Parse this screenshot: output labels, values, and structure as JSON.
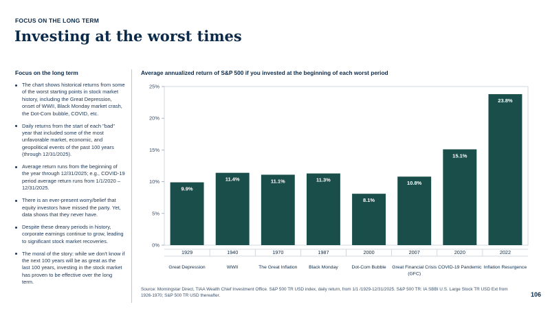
{
  "header": {
    "eyebrow": "FOCUS ON THE LONG TERM",
    "title": "Investing at the worst times"
  },
  "sidebar": {
    "heading": "Focus on the long term",
    "bullets": [
      "The chart shows historical returns from some of the worst starting points in stock market history, including the Great Depression, onset of  WWII, Black Monday market crash, the Dot-Com bubble, COVID, etc.",
      "Daily returns from the start of each \"bad\" year that included some of the most unfavorable market, economic, and geopolitical events of the past 100 years (through 12/31/2025).",
      "Average return runs from the beginning of the year through 12/31/2025; e.g., COVID-19 period average return runs from 1/1/2020 – 12/31/2025.",
      "There is an ever-present worry/belief that equity investors have missed the party. Yet, data shows that they never have.",
      "Despite these dreary periods in history, corporate earnings continue to grow, leading to significant stock market recoveries.",
      "The moral of the story: while we don't know if the next 100 years will be as great as the last 100 years, investing in the stock market has proven to be effective over the long term."
    ]
  },
  "chart_data": {
    "type": "bar",
    "title": "Average annualized return of S&P 500 if you invested at the beginning of each worst period",
    "categories": [
      "1929",
      "1940",
      "1970",
      "1987",
      "2000",
      "2007",
      "2020",
      "2022"
    ],
    "category_labels": [
      "Great Depression",
      "WWII",
      "The Great Inflation",
      "Black Monday",
      "Dot-Com Bubble",
      "Great Financial Crisis (GFC)",
      "COVID-19 Pandemic",
      "Inflation Resurgence"
    ],
    "values": [
      9.9,
      11.4,
      11.1,
      11.3,
      8.1,
      10.8,
      15.1,
      23.8
    ],
    "data_labels": [
      "9.9%",
      "11.4%",
      "11.1%",
      "11.3%",
      "8.1%",
      "10.8%",
      "15.1%",
      "23.8%"
    ],
    "yticks": [
      0,
      5,
      10,
      15,
      20,
      25
    ],
    "ytick_labels": [
      "0%",
      "5%",
      "10%",
      "15%",
      "20%",
      "25%"
    ],
    "ylim": [
      0,
      25
    ],
    "grid": false,
    "bar_color": "#1a4e4b",
    "label_color": "#ffffff"
  },
  "footer": {
    "source": "Source: Morningstar Direct, TIAA Wealth Chief Investment Office. S&P 500 TR USD index, daily return, from 1/1 /1929-12/31/2025. S&P 500 TR: IA SBBI U.S. Large Stock TR USD Ext from 1926-1970; S&P 500 TR USD thereafter.",
    "page_number": "106"
  }
}
